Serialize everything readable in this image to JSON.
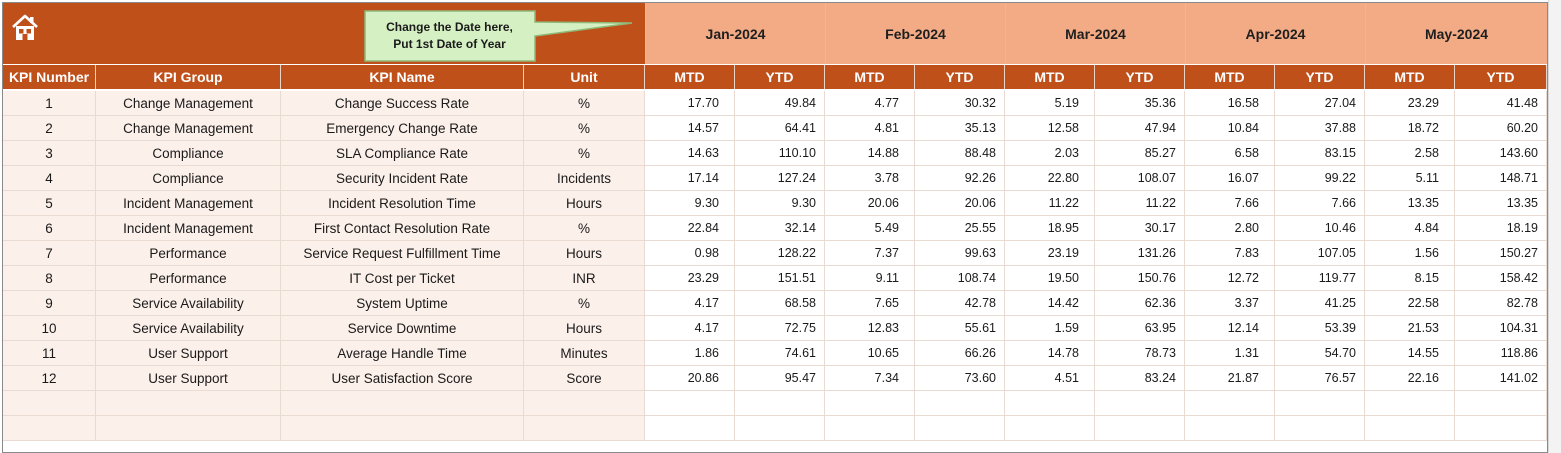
{
  "callout": {
    "line1": "Change the Date here,",
    "line2": "Put 1st Date of Year"
  },
  "icons": {
    "home": "home-icon"
  },
  "colors": {
    "header": "#c0501a",
    "month_band": "#f2ab85",
    "left_zone": "#fcf0ea"
  },
  "months": [
    "Jan-2024",
    "Feb-2024",
    "Mar-2024",
    "Apr-2024",
    "May-2024"
  ],
  "columns": {
    "kpi_number": "KPI Number",
    "kpi_group": "KPI Group",
    "kpi_name": "KPI Name",
    "unit": "Unit",
    "mtd": "MTD",
    "ytd": "YTD"
  },
  "rows": [
    {
      "number": "1",
      "group": "Change Management",
      "name": "Change Success Rate",
      "unit": "%",
      "values": [
        "17.70",
        "49.84",
        "4.77",
        "30.32",
        "5.19",
        "35.36",
        "16.58",
        "27.04",
        "23.29",
        "41.48"
      ]
    },
    {
      "number": "2",
      "group": "Change Management",
      "name": "Emergency Change Rate",
      "unit": "%",
      "values": [
        "14.57",
        "64.41",
        "4.81",
        "35.13",
        "12.58",
        "47.94",
        "10.84",
        "37.88",
        "18.72",
        "60.20"
      ]
    },
    {
      "number": "3",
      "group": "Compliance",
      "name": "SLA Compliance Rate",
      "unit": "%",
      "values": [
        "14.63",
        "110.10",
        "14.88",
        "88.48",
        "2.03",
        "85.27",
        "6.58",
        "83.15",
        "2.58",
        "143.60"
      ]
    },
    {
      "number": "4",
      "group": "Compliance",
      "name": "Security Incident Rate",
      "unit": "Incidents",
      "values": [
        "17.14",
        "127.24",
        "3.78",
        "92.26",
        "22.80",
        "108.07",
        "16.07",
        "99.22",
        "5.11",
        "148.71"
      ]
    },
    {
      "number": "5",
      "group": "Incident Management",
      "name": "Incident Resolution Time",
      "unit": "Hours",
      "values": [
        "9.30",
        "9.30",
        "20.06",
        "20.06",
        "11.22",
        "11.22",
        "7.66",
        "7.66",
        "13.35",
        "13.35"
      ]
    },
    {
      "number": "6",
      "group": "Incident Management",
      "name": "First Contact Resolution Rate",
      "unit": "%",
      "values": [
        "22.84",
        "32.14",
        "5.49",
        "25.55",
        "18.95",
        "30.17",
        "2.80",
        "10.46",
        "4.84",
        "18.19"
      ]
    },
    {
      "number": "7",
      "group": "Performance",
      "name": "Service Request Fulfillment Time",
      "unit": "Hours",
      "values": [
        "0.98",
        "128.22",
        "7.37",
        "99.63",
        "23.19",
        "131.26",
        "7.83",
        "107.05",
        "1.56",
        "150.27"
      ]
    },
    {
      "number": "8",
      "group": "Performance",
      "name": "IT Cost per Ticket",
      "unit": "INR",
      "values": [
        "23.29",
        "151.51",
        "9.11",
        "108.74",
        "19.50",
        "150.76",
        "12.72",
        "119.77",
        "8.15",
        "158.42"
      ]
    },
    {
      "number": "9",
      "group": "Service Availability",
      "name": "System Uptime",
      "unit": "%",
      "values": [
        "4.17",
        "68.58",
        "7.65",
        "42.78",
        "14.42",
        "62.36",
        "3.37",
        "41.25",
        "22.58",
        "82.78"
      ]
    },
    {
      "number": "10",
      "group": "Service Availability",
      "name": "Service Downtime",
      "unit": "Hours",
      "values": [
        "4.17",
        "72.75",
        "12.83",
        "55.61",
        "1.59",
        "63.95",
        "12.14",
        "53.39",
        "21.53",
        "104.31"
      ]
    },
    {
      "number": "11",
      "group": "User Support",
      "name": "Average Handle Time",
      "unit": "Minutes",
      "values": [
        "1.86",
        "74.61",
        "10.65",
        "66.26",
        "14.78",
        "78.73",
        "1.31",
        "54.70",
        "14.55",
        "118.86"
      ]
    },
    {
      "number": "12",
      "group": "User Support",
      "name": "User Satisfaction Score",
      "unit": "Score",
      "values": [
        "20.86",
        "95.47",
        "7.34",
        "73.60",
        "4.51",
        "83.24",
        "21.87",
        "76.57",
        "22.16",
        "141.02"
      ]
    }
  ]
}
